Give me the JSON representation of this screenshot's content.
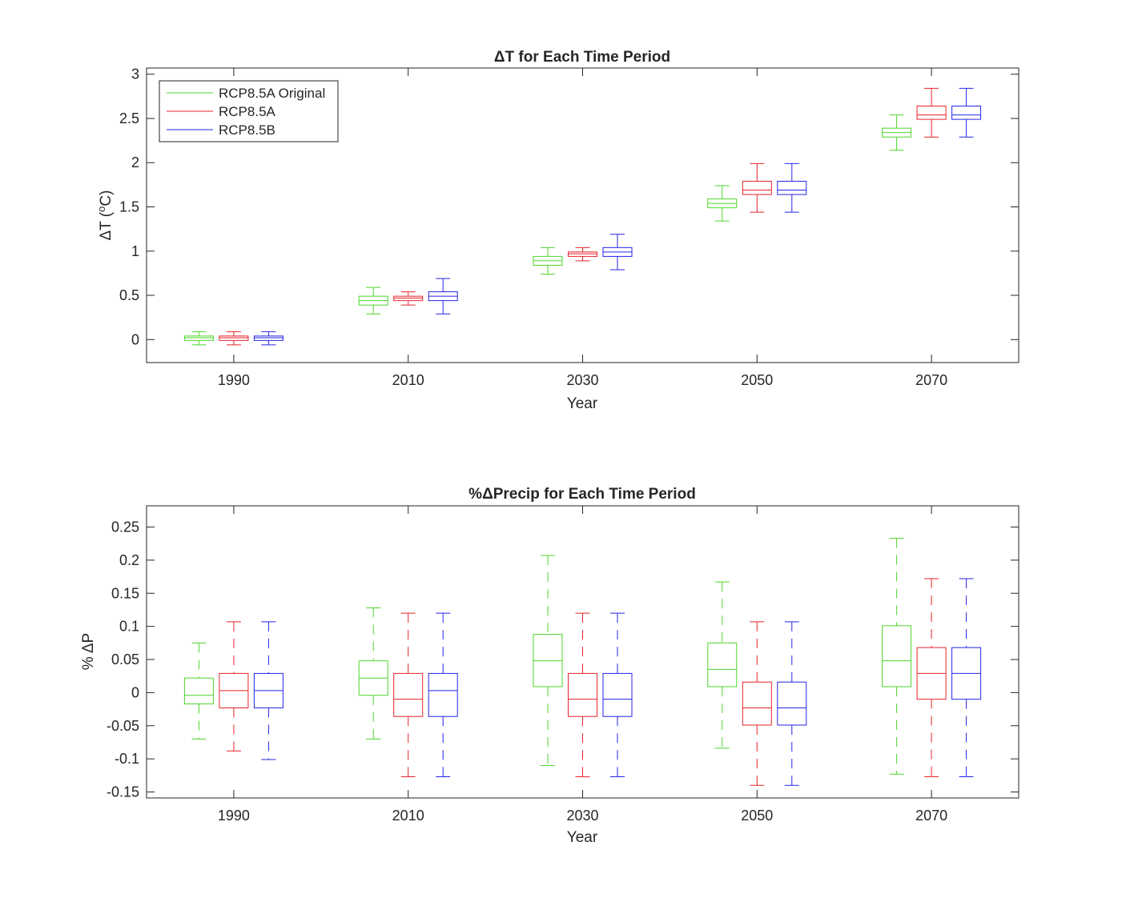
{
  "colors": {
    "green": "#4dd62a",
    "red": "#e8232a",
    "blue": "#2424e8",
    "axis": "#262626",
    "background": "#ffffff"
  },
  "chart_data": [
    {
      "type": "box",
      "title_symbol": "Δ",
      "title_text": "T for Each Time Period",
      "xlabel": "Year",
      "ylabel_symbol": "Δ",
      "ylabel_main": "T (",
      "ylabel_sup": "o",
      "ylabel_end": "C)",
      "categories": [
        "1990",
        "2010",
        "2030",
        "2050",
        "2070"
      ],
      "ylim": [
        -0.26,
        3.07
      ],
      "yticks": [
        {
          "value": 0,
          "label": "0"
        },
        {
          "value": 0.5,
          "label": "0.5"
        },
        {
          "value": 1,
          "label": "1"
        },
        {
          "value": 1.5,
          "label": "1.5"
        },
        {
          "value": 2,
          "label": "2"
        },
        {
          "value": 2.5,
          "label": "2.5"
        },
        {
          "value": 3,
          "label": "3"
        }
      ],
      "grid": false,
      "whisker_style": "solid",
      "legend": {
        "position": "top-left",
        "entries": [
          "RCP8.5A Original",
          "RCP8.5A",
          "RCP8.5B"
        ]
      },
      "series": [
        {
          "name": "RCP8.5A Original",
          "color_key": "green",
          "boxes": [
            {
              "min": -0.06,
              "q1": -0.01,
              "median": 0.02,
              "q3": 0.04,
              "max": 0.09
            },
            {
              "min": 0.29,
              "q1": 0.39,
              "median": 0.44,
              "q3": 0.49,
              "max": 0.59
            },
            {
              "min": 0.74,
              "q1": 0.84,
              "median": 0.89,
              "q3": 0.94,
              "max": 1.04
            },
            {
              "min": 1.34,
              "q1": 1.49,
              "median": 1.54,
              "q3": 1.59,
              "max": 1.74
            },
            {
              "min": 2.14,
              "q1": 2.29,
              "median": 2.34,
              "q3": 2.39,
              "max": 2.54
            }
          ]
        },
        {
          "name": "RCP8.5A",
          "color_key": "red",
          "boxes": [
            {
              "min": -0.06,
              "q1": -0.01,
              "median": 0.02,
              "q3": 0.04,
              "max": 0.09
            },
            {
              "min": 0.39,
              "q1": 0.44,
              "median": 0.47,
              "q3": 0.49,
              "max": 0.54
            },
            {
              "min": 0.89,
              "q1": 0.94,
              "median": 0.97,
              "q3": 0.99,
              "max": 1.04
            },
            {
              "min": 1.44,
              "q1": 1.64,
              "median": 1.69,
              "q3": 1.79,
              "max": 1.99
            },
            {
              "min": 2.29,
              "q1": 2.49,
              "median": 2.54,
              "q3": 2.64,
              "max": 2.84
            }
          ]
        },
        {
          "name": "RCP8.5B",
          "color_key": "blue",
          "boxes": [
            {
              "min": -0.06,
              "q1": -0.01,
              "median": 0.02,
              "q3": 0.04,
              "max": 0.09
            },
            {
              "min": 0.29,
              "q1": 0.44,
              "median": 0.49,
              "q3": 0.54,
              "max": 0.69
            },
            {
              "min": 0.79,
              "q1": 0.94,
              "median": 0.99,
              "q3": 1.04,
              "max": 1.19
            },
            {
              "min": 1.44,
              "q1": 1.64,
              "median": 1.69,
              "q3": 1.79,
              "max": 1.99
            },
            {
              "min": 2.29,
              "q1": 2.49,
              "median": 2.54,
              "q3": 2.64,
              "max": 2.84
            }
          ]
        }
      ]
    },
    {
      "type": "box",
      "title_prefix": "%",
      "title_symbol": "Δ",
      "title_text": "Precip for Each Time Period",
      "xlabel": "Year",
      "ylabel_prefix": "% ",
      "ylabel_symbol": "Δ",
      "ylabel_main": "P",
      "categories": [
        "1990",
        "2010",
        "2030",
        "2050",
        "2070"
      ],
      "ylim": [
        -0.159,
        0.282
      ],
      "yticks": [
        {
          "value": -0.15,
          "label": "-0.15"
        },
        {
          "value": -0.1,
          "label": "-0.1"
        },
        {
          "value": -0.05,
          "label": "-0.05"
        },
        {
          "value": 0,
          "label": "0"
        },
        {
          "value": 0.05,
          "label": "0.05"
        },
        {
          "value": 0.1,
          "label": "0.1"
        },
        {
          "value": 0.15,
          "label": "0.15"
        },
        {
          "value": 0.2,
          "label": "0.2"
        },
        {
          "value": 0.25,
          "label": "0.25"
        }
      ],
      "grid": false,
      "whisker_style": "dashed",
      "series": [
        {
          "name": "RCP8.5A Original",
          "color_key": "green",
          "boxes": [
            {
              "min": -0.07,
              "q1": -0.017,
              "median": -0.004,
              "q3": 0.022,
              "max": 0.075
            },
            {
              "min": -0.07,
              "q1": -0.004,
              "median": 0.022,
              "q3": 0.048,
              "max": 0.128
            },
            {
              "min": -0.11,
              "q1": 0.009,
              "median": 0.048,
              "q3": 0.088,
              "max": 0.207
            },
            {
              "min": -0.084,
              "q1": 0.009,
              "median": 0.035,
              "q3": 0.075,
              "max": 0.167
            },
            {
              "min": -0.123,
              "q1": 0.009,
              "median": 0.048,
              "q3": 0.101,
              "max": 0.233
            }
          ]
        },
        {
          "name": "RCP8.5A",
          "color_key": "red",
          "boxes": [
            {
              "min": -0.088,
              "q1": -0.023,
              "median": 0.003,
              "q3": 0.029,
              "max": 0.107
            },
            {
              "min": -0.127,
              "q1": -0.036,
              "median": -0.01,
              "q3": 0.029,
              "max": 0.12
            },
            {
              "min": -0.127,
              "q1": -0.036,
              "median": -0.01,
              "q3": 0.029,
              "max": 0.12
            },
            {
              "min": -0.14,
              "q1": -0.049,
              "median": -0.023,
              "q3": 0.016,
              "max": 0.107
            },
            {
              "min": -0.127,
              "q1": -0.01,
              "median": 0.029,
              "q3": 0.068,
              "max": 0.172
            }
          ]
        },
        {
          "name": "RCP8.5B",
          "color_key": "blue",
          "boxes": [
            {
              "min": -0.101,
              "q1": -0.023,
              "median": 0.003,
              "q3": 0.029,
              "max": 0.107
            },
            {
              "min": -0.127,
              "q1": -0.036,
              "median": 0.003,
              "q3": 0.029,
              "max": 0.12
            },
            {
              "min": -0.127,
              "q1": -0.036,
              "median": -0.01,
              "q3": 0.029,
              "max": 0.12
            },
            {
              "min": -0.14,
              "q1": -0.049,
              "median": -0.023,
              "q3": 0.016,
              "max": 0.107
            },
            {
              "min": -0.127,
              "q1": -0.01,
              "median": 0.029,
              "q3": 0.068,
              "max": 0.172
            }
          ]
        }
      ]
    }
  ]
}
